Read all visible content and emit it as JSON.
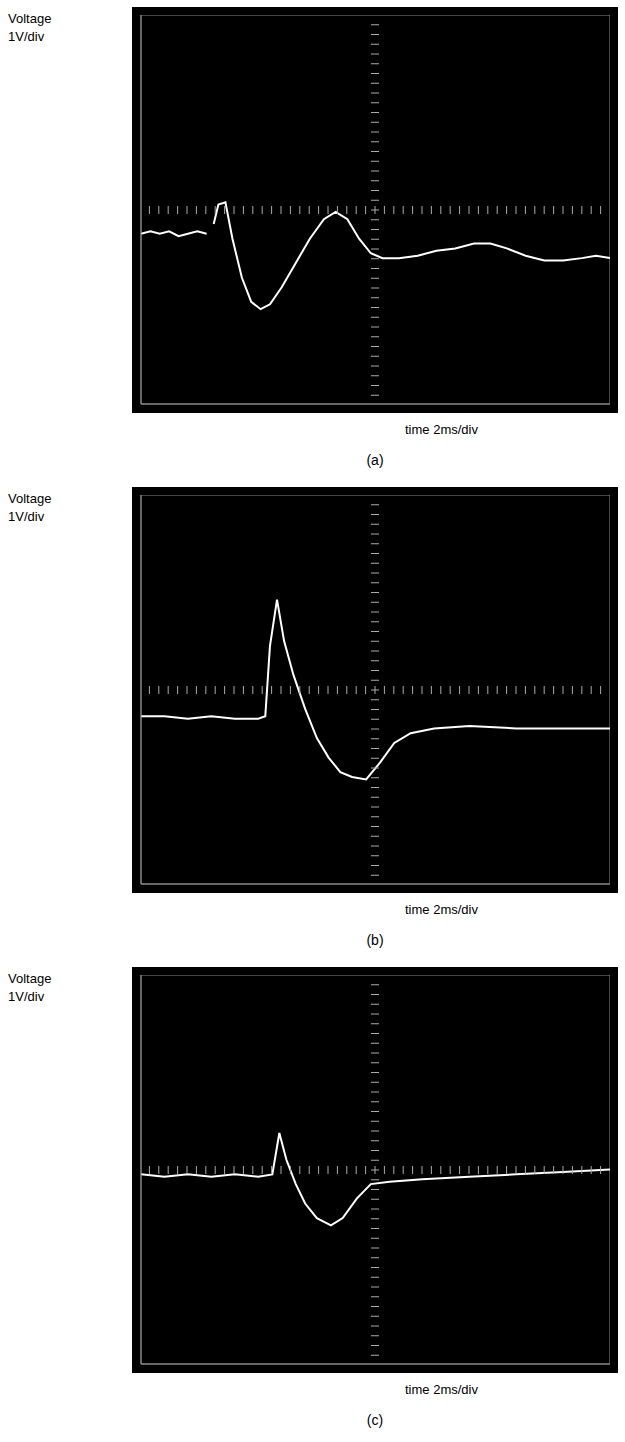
{
  "chart_data": [
    {
      "type": "line",
      "title": "(a)",
      "x_label": "time 2ms/div",
      "y_label": "Voltage 1V/div",
      "x": [
        0,
        0.4,
        0.8,
        1.2,
        1.6,
        2.0,
        2.4,
        2.8,
        2.9,
        3.1,
        3.3,
        3.6,
        3.9,
        4.3,
        4.7,
        5.1,
        5.5,
        6.0,
        6.6,
        7.2,
        7.8,
        8.3,
        8.8,
        9.3,
        9.8,
        10.3,
        11.0,
        11.8,
        12.6,
        13.4,
        14.2,
        14.9,
        15.6,
        16.4,
        17.2,
        18.0,
        18.8,
        19.4,
        20
      ],
      "values": [
        -0.5,
        -0.45,
        -0.5,
        -0.45,
        -0.55,
        -0.5,
        -0.45,
        -0.5,
        null,
        -0.3,
        0.1,
        0.15,
        -0.6,
        -1.4,
        -1.9,
        -2.05,
        -1.95,
        -1.6,
        -1.1,
        -0.6,
        -0.2,
        -0.05,
        -0.2,
        -0.6,
        -0.9,
        -1.0,
        -1.0,
        -0.95,
        -0.85,
        -0.8,
        -0.7,
        -0.7,
        -0.8,
        -0.95,
        -1.05,
        -1.05,
        -1.0,
        -0.95,
        -1.0
      ],
      "color": "#ffffff",
      "xlim": [
        0,
        20
      ],
      "xticks": [
        0,
        2,
        4,
        6,
        8,
        10,
        12,
        14,
        16,
        18,
        20
      ],
      "ylim": [
        -4,
        4
      ],
      "yticks": [
        -4,
        -3,
        -2,
        -1,
        0,
        1,
        2,
        3,
        4
      ],
      "grid": true,
      "tick_labels": false
    },
    {
      "type": "line",
      "title": "(b)",
      "x_label": "time 2ms/div",
      "y_label": "Voltage 1V/div",
      "x": [
        0,
        1,
        2,
        3,
        4,
        5,
        5.3,
        5.5,
        5.8,
        6.1,
        6.5,
        7.0,
        7.5,
        8.0,
        8.5,
        9.0,
        9.6,
        10.2,
        10.8,
        11.5,
        12.5,
        14,
        16,
        18,
        20
      ],
      "values": [
        -0.55,
        -0.55,
        -0.6,
        -0.55,
        -0.6,
        -0.6,
        -0.55,
        0.9,
        1.85,
        1.0,
        0.3,
        -0.4,
        -1.0,
        -1.4,
        -1.7,
        -1.8,
        -1.85,
        -1.5,
        -1.1,
        -0.9,
        -0.8,
        -0.75,
        -0.8,
        -0.8,
        -0.8
      ],
      "color": "#ffffff",
      "xlim": [
        0,
        20
      ],
      "xticks": [
        0,
        2,
        4,
        6,
        8,
        10,
        12,
        14,
        16,
        18,
        20
      ],
      "ylim": [
        -4,
        4
      ],
      "yticks": [
        -4,
        -3,
        -2,
        -1,
        0,
        1,
        2,
        3,
        4
      ],
      "grid": true,
      "tick_labels": false
    },
    {
      "type": "line",
      "title": "(c)",
      "x_label": "time 2ms/div",
      "y_label": "Voltage 1V/div",
      "x": [
        0,
        1,
        2,
        3,
        4,
        5,
        5.6,
        5.9,
        6.2,
        6.6,
        7.0,
        7.5,
        8.1,
        8.6,
        9.2,
        9.8,
        10.6,
        12,
        14,
        16,
        18,
        20
      ],
      "values": [
        -0.1,
        -0.15,
        -0.1,
        -0.15,
        -0.1,
        -0.15,
        -0.1,
        0.75,
        0.2,
        -0.3,
        -0.7,
        -1.0,
        -1.15,
        -1.0,
        -0.6,
        -0.3,
        -0.25,
        -0.2,
        -0.15,
        -0.1,
        -0.05,
        0
      ],
      "color": "#ffffff",
      "xlim": [
        0,
        20
      ],
      "xticks": [
        0,
        2,
        4,
        6,
        8,
        10,
        12,
        14,
        16,
        18,
        20
      ],
      "ylim": [
        -4,
        4
      ],
      "yticks": [
        -4,
        -3,
        -2,
        -1,
        0,
        1,
        2,
        3,
        4
      ],
      "grid": true,
      "tick_labels": false
    }
  ]
}
